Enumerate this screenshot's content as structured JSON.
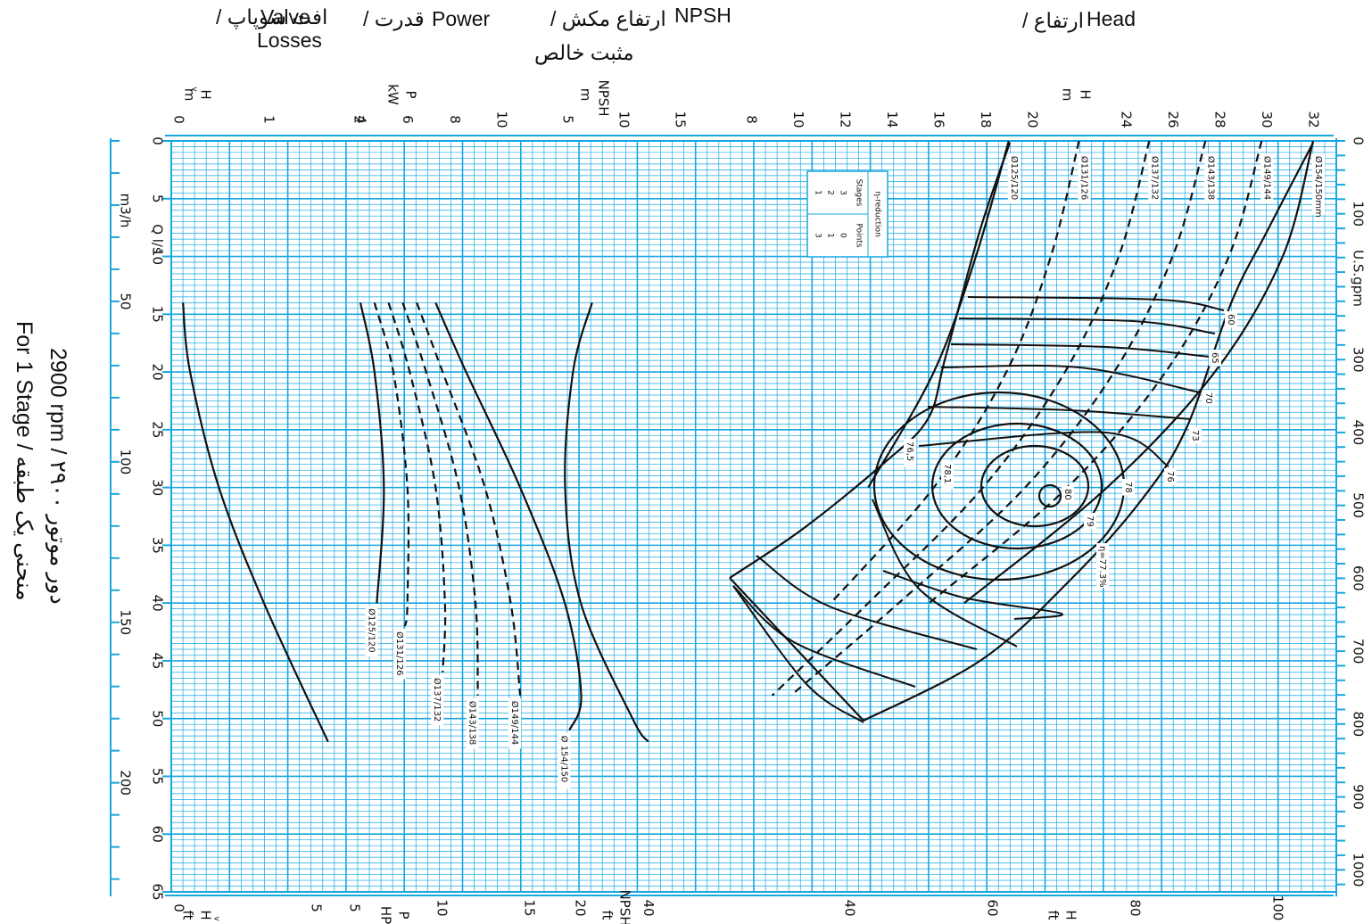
{
  "headers": {
    "valve_losses_en": "Valve",
    "valve_losses_en2": "Losses",
    "valve_losses_fa": "/ افت سوپاپ",
    "power_en": "Power",
    "power_fa": "/ قدرت",
    "npsh_en": "NPSH",
    "npsh_fa": "/ ارتفاع مکش",
    "npsh_fa2": "مثبت خالص",
    "head_en": "Head",
    "head_fa": "/ ارتفاع"
  },
  "side_title": {
    "line1": "2900 rpm / دور موتور ۲۹۰۰",
    "line2": "For 1 Stage / منحنی یک طبقه"
  },
  "axes": {
    "top_hv_label": "H",
    "top_hv_sub": "v",
    "top_hv_unit": "m",
    "top_p_label": "P",
    "top_p_unit": "kW",
    "top_npsh_label": "NPSH",
    "top_npsh_unit": "m",
    "top_h_label": "H",
    "top_h_unit": "m",
    "top_hv_ticks": [
      "0",
      "1",
      "2",
      "4"
    ],
    "top_p_ticks": [
      "6",
      "8",
      "10"
    ],
    "top_npsh_ticks": [
      "5",
      "10",
      "15"
    ],
    "top_h_ticks": [
      "8",
      "10",
      "12",
      "14",
      "16",
      "18",
      "20",
      "24",
      "26",
      "28",
      "30",
      "32"
    ],
    "bottom_hv_label": "H",
    "bottom_hv_sub": "v",
    "bottom_hv_unit": "ft",
    "bottom_hv_ticks": [
      "0",
      "5"
    ],
    "bottom_p_label": "P",
    "bottom_p_unit": "HP",
    "bottom_p_ticks": [
      "5",
      "10",
      "15"
    ],
    "bottom_npsh_label": "NPSH",
    "bottom_npsh_unit": "ft",
    "bottom_npsh_ticks": [
      "20",
      "40"
    ],
    "bottom_h_label": "H",
    "bottom_h_unit": "ft",
    "bottom_h_ticks": [
      "40",
      "60",
      "80",
      "100"
    ],
    "q_ls_label": "Q l/s",
    "q_m3h_label": "m3/h",
    "q_ls_ticks": [
      "0",
      "5",
      "10",
      "15",
      "20",
      "25",
      "30",
      "35",
      "40",
      "45",
      "50",
      "55",
      "60",
      "65"
    ],
    "q_m3h_ticks": [
      "50",
      "100",
      "150",
      "200"
    ],
    "gpm_label": "U.S.gpm",
    "gpm_ticks": [
      "0",
      "100",
      "300",
      "400",
      "500",
      "600",
      "700",
      "800",
      "900",
      "1000"
    ]
  },
  "eta_table": {
    "title": "η-reduction",
    "col1": "Stages",
    "col2": "Points",
    "rows": [
      [
        "3",
        "0"
      ],
      [
        "2",
        "1"
      ],
      [
        "1",
        "3"
      ]
    ]
  },
  "efficiency_label": "η=77.3%",
  "colors": {
    "grid": "#18a7e0",
    "background": "#ffffff",
    "curve": "#111111"
  },
  "chart_data": {
    "type": "line",
    "title": "",
    "x_axis": "Q (l/s)",
    "xlim": [
      0,
      65
    ],
    "grid": true,
    "head_curves": {
      "ylabel": "H (m)",
      "series": [
        {
          "name": "Ø154/150mm",
          "x": [
            0,
            10,
            20,
            30,
            40
          ],
          "y": [
            32,
            30.7,
            27.8,
            23.2,
            17.1
          ]
        },
        {
          "name": "Ø149/144",
          "x": [
            0,
            10,
            20,
            30,
            40
          ],
          "y": [
            29.8,
            28.4,
            25.7,
            21.5,
            15.6
          ]
        },
        {
          "name": "Ø143/138",
          "x": [
            0,
            10,
            20,
            30,
            40,
            48
          ],
          "y": [
            27.4,
            26.0,
            23.5,
            19.7,
            14.3,
            9.7
          ]
        },
        {
          "name": "Ø137/132",
          "x": [
            0,
            10,
            20,
            30,
            40,
            48
          ],
          "y": [
            25.0,
            23.7,
            21.4,
            17.9,
            13.0,
            8.9
          ]
        },
        {
          "name": "Ø131/126",
          "x": [
            0,
            10,
            20,
            30,
            40
          ],
          "y": [
            22.0,
            20.8,
            18.9,
            15.8,
            11.4
          ]
        },
        {
          "name": "Ø125/120",
          "x": [
            0,
            10,
            20,
            30
          ],
          "y": [
            19.0,
            17.6,
            15.8,
            13.0
          ]
        }
      ]
    },
    "efficiency_contours": [
      "60",
      "65",
      "70",
      "73",
      "76",
      "76,5",
      "78",
      "78,1",
      "79",
      "80"
    ],
    "power_curves": {
      "ylabel": "P (kW)",
      "series": [
        {
          "name": "Ø125/120",
          "x": [
            14,
            20,
            30,
            40
          ],
          "y": [
            4.0,
            4.6,
            5.0,
            4.7
          ]
        },
        {
          "name": "Ø131/126",
          "x": [
            14,
            20,
            30,
            40,
            42
          ],
          "y": [
            4.6,
            5.4,
            6.0,
            6.0,
            5.9
          ]
        },
        {
          "name": "Ø137/132",
          "x": [
            14,
            20,
            30,
            40,
            46
          ],
          "y": [
            5.2,
            6.1,
            7.2,
            7.6,
            7.5
          ]
        },
        {
          "name": "Ø143/138",
          "x": [
            14,
            20,
            30,
            40,
            48
          ],
          "y": [
            5.8,
            6.8,
            8.2,
            8.9,
            9.0
          ]
        },
        {
          "name": "Ø149/144",
          "x": [
            14,
            20,
            30,
            40,
            48
          ],
          "y": [
            6.4,
            7.5,
            9.3,
            10.4,
            10.8
          ]
        },
        {
          "name": "Ø 154/150",
          "x": [
            14,
            20,
            30,
            40,
            48,
            51
          ],
          "y": [
            7.2,
            8.5,
            10.8,
            12.7,
            13.4,
            12.9
          ]
        }
      ]
    },
    "npsh_curve": {
      "ylabel": "NPSH (m)",
      "x": [
        14,
        20,
        30,
        40,
        50,
        52
      ],
      "y": [
        7.2,
        5.5,
        4.8,
        6.2,
        10.8,
        12.2
      ]
    },
    "valve_loss_curve": {
      "ylabel": "Hv (m)",
      "x": [
        14,
        20,
        30,
        40,
        52
      ],
      "y": [
        0.05,
        0.13,
        0.45,
        0.95,
        1.66
      ]
    }
  }
}
